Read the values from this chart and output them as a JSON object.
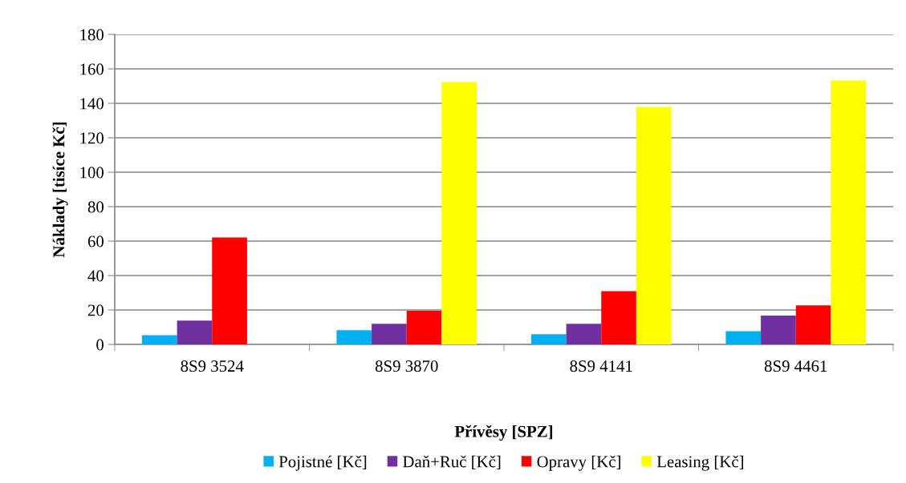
{
  "chart_data": {
    "type": "bar",
    "xlabel": "Přívěsy [SPZ]",
    "ylabel": "Náklady [tisíce Kč]",
    "categories": [
      "8S9 3524",
      "8S9 3870",
      "8S9 4141",
      "8S9 4461"
    ],
    "series": [
      {
        "name": "Pojistné [Kč]",
        "color": "#00b0f0",
        "values": [
          5.3,
          8.3,
          5.9,
          7.7
        ]
      },
      {
        "name": "Daň+Ruč [Kč]",
        "color": "#7030a0",
        "values": [
          13.8,
          12,
          12,
          16.8
        ]
      },
      {
        "name": "Opravy [Kč]",
        "color": "#ff0000",
        "values": [
          62.1,
          19.5,
          30.9,
          22.7
        ]
      },
      {
        "name": "Leasing [Kč]",
        "color": "#ffff00",
        "values": [
          0,
          152.3,
          137.9,
          153.3
        ]
      }
    ],
    "ylim": [
      0,
      180
    ],
    "yticks": [
      0,
      20,
      40,
      60,
      80,
      100,
      120,
      140,
      160,
      180
    ],
    "grid": "y",
    "legend": "bottom"
  }
}
